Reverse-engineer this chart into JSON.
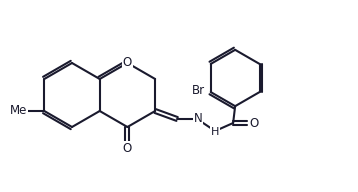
{
  "bg": "#ffffff",
  "lc": "#1a1a2e",
  "lw": 1.5,
  "fs": 8.5,
  "dbl_off": 2.5,
  "labels": {
    "O_ring": "O",
    "O_keto1": "O",
    "O_keto2": "O",
    "N": "N",
    "NH": "H",
    "Br": "Br",
    "Me": "Me"
  }
}
